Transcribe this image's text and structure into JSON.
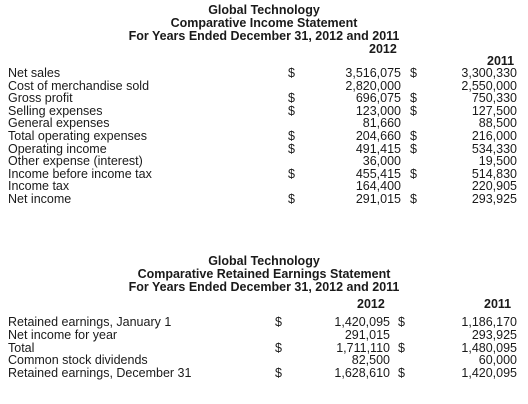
{
  "income": {
    "company": "Global Technology",
    "title": "Comparative Income Statement",
    "period": "For Years Ended December 31, 2012 and 2011",
    "year1": "2012",
    "year2": "2011",
    "rows": [
      {
        "label": "Net sales",
        "d1": "$",
        "v1": "3,516,075",
        "d2": "$",
        "v2": "3,300,330"
      },
      {
        "label": "Cost of merchandise sold",
        "d1": "",
        "v1": "2,820,000",
        "d2": "",
        "v2": "2,550,000"
      },
      {
        "label": "Gross profit",
        "d1": "$",
        "v1": "696,075",
        "d2": "$",
        "v2": "750,330"
      },
      {
        "label": "Selling expenses",
        "d1": "$",
        "v1": "123,000",
        "d2": "$",
        "v2": "127,500"
      },
      {
        "label": "General expenses",
        "d1": "",
        "v1": "81,660",
        "d2": "",
        "v2": "88,500"
      },
      {
        "label": "Total operating expenses",
        "d1": "$",
        "v1": "204,660",
        "d2": "$",
        "v2": "216,000"
      },
      {
        "label": "Operating income",
        "d1": "$",
        "v1": "491,415",
        "d2": "$",
        "v2": "534,330"
      },
      {
        "label": "Other expense (interest)",
        "d1": "",
        "v1": "36,000",
        "d2": "",
        "v2": "19,500"
      },
      {
        "label": "Income before income tax",
        "d1": "$",
        "v1": "455,415",
        "d2": "$",
        "v2": "514,830"
      },
      {
        "label": "Income tax",
        "d1": "",
        "v1": "164,400",
        "d2": "",
        "v2": "220,905"
      },
      {
        "label": "Net income",
        "d1": "$",
        "v1": "291,015",
        "d2": "$",
        "v2": "293,925"
      }
    ]
  },
  "retained": {
    "company": "Global Technology",
    "title": "Comparative Retained Earnings Statement",
    "period": "For Years Ended December 31, 2012 and 2011",
    "year1": "2012",
    "year2": "2011",
    "rows": [
      {
        "label": "Retained earnings, January 1",
        "d1": "$",
        "v1": "1,420,095",
        "d2": "$",
        "v2": "1,186,170"
      },
      {
        "label": "Net income for year",
        "d1": "",
        "v1": "291,015",
        "d2": "",
        "v2": "293,925"
      },
      {
        "label": "Total",
        "d1": "$",
        "v1": "1,711,110",
        "d2": "$",
        "v2": "1,480,095"
      },
      {
        "label": "Common stock dividends",
        "d1": "",
        "v1": "82,500",
        "d2": "",
        "v2": "60,000"
      },
      {
        "label": "Retained earnings, December 31",
        "d1": "$",
        "v1": "1,628,610",
        "d2": "$",
        "v2": "1,420,095"
      }
    ]
  }
}
